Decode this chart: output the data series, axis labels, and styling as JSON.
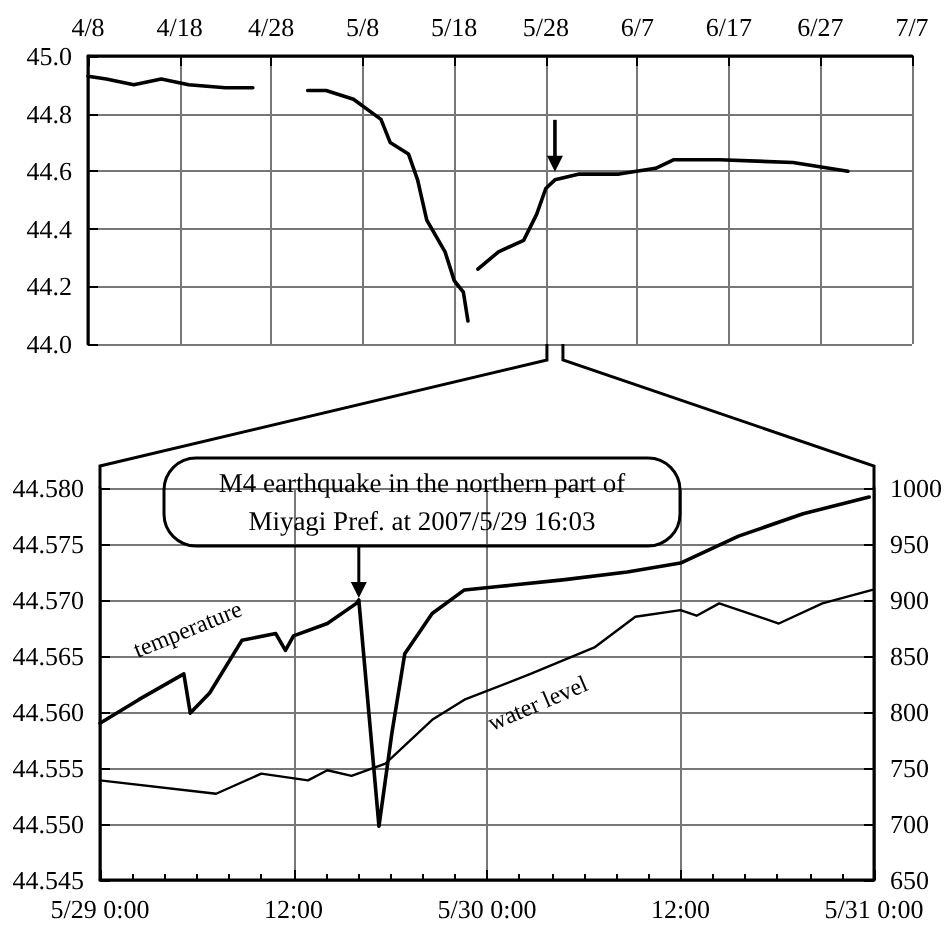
{
  "chart_data": [
    {
      "type": "line",
      "x": [
        "--04-08",
        "--04-10",
        "--04-13",
        "--04-16",
        "--04-19",
        "--04-23",
        "--04-26",
        "--04-29",
        "--05-02",
        "--05-04",
        "--05-07",
        "--05-10",
        "--05-11",
        "--05-13",
        "--05-14",
        "--05-15",
        "--05-17",
        "--05-18",
        "--05-19",
        "--05-19T12:00",
        "--05-20",
        "--05-20T14:00",
        "--05-22T20:00",
        "--05-25T14:00",
        "--05-27",
        "--05-28",
        "--05-29",
        "--05-31T16:00",
        "--06-05",
        "--06-09",
        "--06-11",
        "--06-16",
        "--06-24",
        "--06-30"
      ],
      "series": [
        {
          "color": "#000000",
          "values": [
            44.93,
            44.92,
            44.9,
            44.92,
            44.9,
            44.89,
            44.89,
            null,
            44.88,
            44.88,
            44.85,
            44.78,
            44.7,
            44.66,
            44.57,
            44.43,
            44.32,
            44.22,
            44.18,
            44.08,
            null,
            44.26,
            44.32,
            44.36,
            44.45,
            44.54,
            44.57,
            44.59,
            44.59,
            44.61,
            44.64,
            44.64,
            44.63,
            44.6
          ]
        }
      ],
      "xlim": [
        "--04-08",
        "--07-07"
      ],
      "xticks": [
        {
          "value": "--04-08",
          "label": "4/8"
        },
        {
          "value": "--04-18",
          "label": "4/18"
        },
        {
          "value": "--04-28",
          "label": "4/28"
        },
        {
          "value": "--05-08",
          "label": "5/8"
        },
        {
          "value": "--05-18",
          "label": "5/18"
        },
        {
          "value": "--05-28",
          "label": "5/28"
        },
        {
          "value": "--06-07",
          "label": "6/7"
        },
        {
          "value": "--06-17",
          "label": "6/17"
        },
        {
          "value": "--06-27",
          "label": "6/27"
        },
        {
          "value": "--07-07",
          "label": "7/7"
        }
      ],
      "ylim": [
        44.0,
        45.0
      ],
      "yticks": [
        {
          "value": 44.0,
          "label": "44.0"
        },
        {
          "value": 44.2,
          "label": "44.2"
        },
        {
          "value": 44.4,
          "label": "44.4"
        },
        {
          "value": 44.6,
          "label": "44.6"
        },
        {
          "value": 44.8,
          "label": "44.8"
        },
        {
          "value": 45.0,
          "label": "45.0"
        }
      ],
      "grid": true,
      "marker": "none"
    },
    {
      "type": "line",
      "series": [
        {
          "name": "temperature",
          "color": "#000000",
          "x": [
            "--05-29T00:00",
            "--05-29T02:24",
            "--05-29T05:12",
            "--05-29T05:36",
            "--05-29T06:48",
            "--05-29T08:48",
            "--05-29T10:54",
            "--05-29T11:30",
            "--05-29T12:00",
            "--05-29T14:06",
            "--05-29T15:54",
            "--05-29T16:03",
            "--05-29T17:18",
            "--05-29T18:06",
            "--05-29T18:54",
            "--05-29T20:36",
            "--05-29T22:36",
            "--05-30T00:42",
            "--05-30T04:42",
            "--05-30T08:42",
            "--05-30T12:00",
            "--05-30T15:36",
            "--05-30T19:36",
            "--05-30T23:42"
          ],
          "values": [
            44.559,
            44.5611,
            44.5634,
            44.5599,
            44.5617,
            44.5664,
            44.567,
            44.5655,
            44.5668,
            44.5679,
            44.5697,
            44.57,
            44.5498,
            44.5581,
            44.5652,
            44.5688,
            44.5709,
            44.5712,
            44.5718,
            44.5725,
            44.5733,
            44.5757,
            44.5777,
            44.5792
          ]
        },
        {
          "name": "water level",
          "color": "#000000",
          "axis": "y2",
          "x": [
            "--05-29T00:00",
            "--05-29T07:12",
            "--05-29T10:00",
            "--05-29T12:54",
            "--05-29T14:06",
            "--05-29T15:36",
            "--05-29T17:42",
            "--05-29T20:36",
            "--05-29T22:36",
            "--05-30T02:42",
            "--05-30T06:42",
            "--05-30T09:12",
            "--05-30T12:00",
            "--05-30T13:00",
            "--05-30T14:24",
            "--05-30T18:06",
            "--05-30T20:48",
            "--05-30T23:54"
          ],
          "values": [
            739,
            727,
            745,
            739,
            748,
            743,
            754,
            793,
            811,
            834,
            858,
            885,
            891,
            886,
            897,
            879,
            897,
            909
          ]
        }
      ],
      "xlim": [
        "--05-29T00:00",
        "--05-31T00:00"
      ],
      "xticks": [
        {
          "value": "--05-29T00:00",
          "label": "5/29 0:00"
        },
        {
          "value": "--05-29T12:00",
          "label": "12:00"
        },
        {
          "value": "--05-30T00:00",
          "label": "5/30 0:00"
        },
        {
          "value": "--05-30T12:00",
          "label": "12:00"
        },
        {
          "value": "--05-31T00:00",
          "label": "5/31 0:00"
        }
      ],
      "ylim": [
        44.545,
        44.58
      ],
      "yticks": [
        {
          "value": 44.545,
          "label": "44.545"
        },
        {
          "value": 44.55,
          "label": "44.550"
        },
        {
          "value": 44.555,
          "label": "44.555"
        },
        {
          "value": 44.56,
          "label": "44.560"
        },
        {
          "value": 44.565,
          "label": "44.565"
        },
        {
          "value": 44.57,
          "label": "44.570"
        },
        {
          "value": 44.575,
          "label": "44.575"
        },
        {
          "value": 44.58,
          "label": "44.580"
        }
      ],
      "y2lim": [
        650,
        1000
      ],
      "y2ticks": [
        650,
        700,
        750,
        800,
        850,
        900,
        950,
        1000
      ],
      "annotations": [
        {
          "text": "M4 earthquake in the northern part of Miyagi Pref. at 2007/5/29 16:03",
          "x": "--05-29T16:03",
          "y": 44.57
        }
      ],
      "grid": true,
      "marker": "none"
    }
  ]
}
